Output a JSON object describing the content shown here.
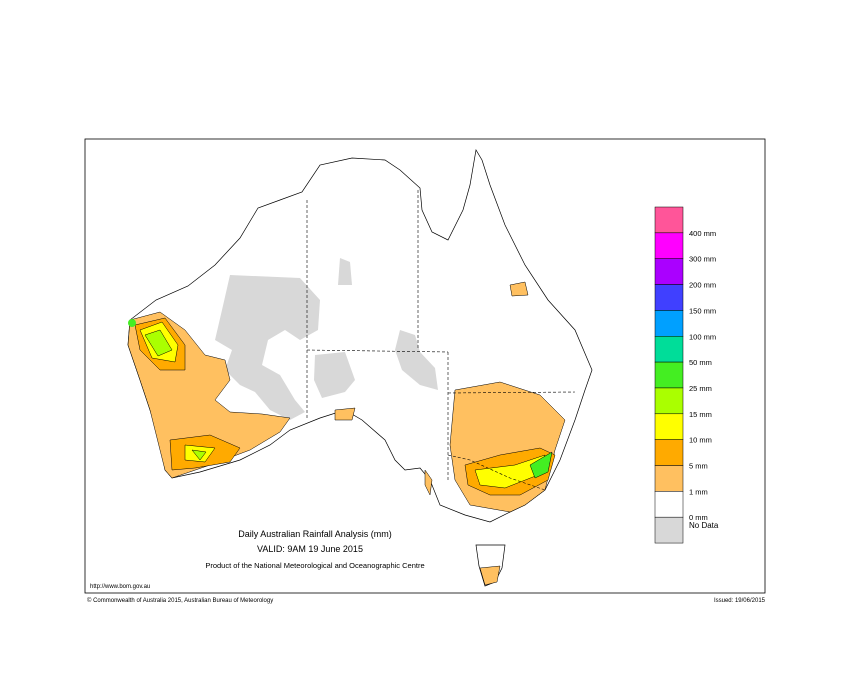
{
  "title": "Daily Australian Rainfall Analysis (mm)",
  "valid": "VALID: 9AM 19 June 2015",
  "product": "Product of the National Meteorological and Oceanographic Centre",
  "url": "http://www.bom.gov.au",
  "copyright": "© Commonwealth of Australia 2015, Australian Bureau of Meteorology",
  "issued": "Issued: 19/06/2015",
  "legend": {
    "colors": [
      "#ff5599",
      "#ff00ff",
      "#aa00ff",
      "#4040ff",
      "#00a0ff",
      "#00dd99",
      "#44ee22",
      "#aaff00",
      "#ffff00",
      "#ffaa00",
      "#ffc060",
      "#ffffff",
      "#d8d8d8"
    ],
    "labels": [
      "400 mm",
      "300 mm",
      "200 mm",
      "150 mm",
      "100 mm",
      "50 mm",
      "25 mm",
      "15 mm",
      "10 mm",
      "5 mm",
      "1 mm",
      "0 mm"
    ],
    "no_data_label": "No Data"
  }
}
